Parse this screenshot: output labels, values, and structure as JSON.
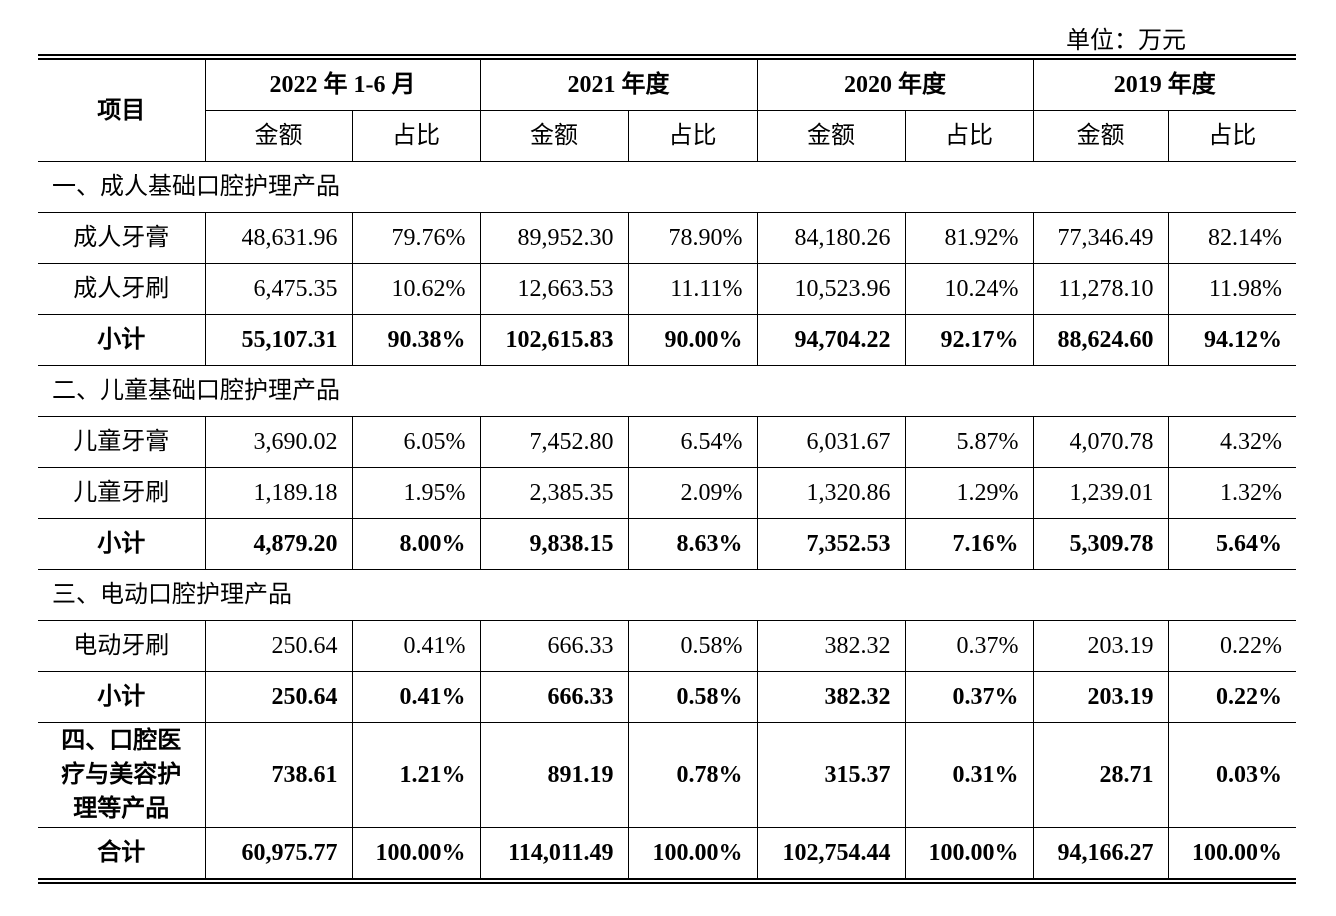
{
  "unit": "单位：万元",
  "header": {
    "item": "项目",
    "periods": [
      "2022 年 1-6 月",
      "2021 年度",
      "2020 年度",
      "2019 年度"
    ],
    "sub": [
      "金额",
      "占比"
    ]
  },
  "rows": [
    {
      "section": "一、成人基础口腔护理产品"
    },
    {
      "label": "成人牙膏",
      "values": [
        "48,631.96",
        "79.76%",
        "89,952.30",
        "78.90%",
        "84,180.26",
        "81.92%",
        "77,346.49",
        "82.14%"
      ]
    },
    {
      "label": "成人牙刷",
      "values": [
        "6,475.35",
        "10.62%",
        "12,663.53",
        "11.11%",
        "10,523.96",
        "10.24%",
        "11,278.10",
        "11.98%"
      ]
    },
    {
      "label": "小计",
      "bold": true,
      "values": [
        "55,107.31",
        "90.38%",
        "102,615.83",
        "90.00%",
        "94,704.22",
        "92.17%",
        "88,624.60",
        "94.12%"
      ]
    },
    {
      "section": "二、儿童基础口腔护理产品"
    },
    {
      "label": "儿童牙膏",
      "values": [
        "3,690.02",
        "6.05%",
        "7,452.80",
        "6.54%",
        "6,031.67",
        "5.87%",
        "4,070.78",
        "4.32%"
      ]
    },
    {
      "label": "儿童牙刷",
      "values": [
        "1,189.18",
        "1.95%",
        "2,385.35",
        "2.09%",
        "1,320.86",
        "1.29%",
        "1,239.01",
        "1.32%"
      ]
    },
    {
      "label": "小计",
      "bold": true,
      "values": [
        "4,879.20",
        "8.00%",
        "9,838.15",
        "8.63%",
        "7,352.53",
        "7.16%",
        "5,309.78",
        "5.64%"
      ]
    },
    {
      "section": "三、电动口腔护理产品"
    },
    {
      "label": "电动牙刷",
      "values": [
        "250.64",
        "0.41%",
        "666.33",
        "0.58%",
        "382.32",
        "0.37%",
        "203.19",
        "0.22%"
      ]
    },
    {
      "label": "小计",
      "bold": true,
      "values": [
        "250.64",
        "0.41%",
        "666.33",
        "0.58%",
        "382.32",
        "0.37%",
        "203.19",
        "0.22%"
      ]
    },
    {
      "label": "四、口腔医疗与美容护理等产品",
      "bold": true,
      "tall": true,
      "values": [
        "738.61",
        "1.21%",
        "891.19",
        "0.78%",
        "315.37",
        "0.31%",
        "28.71",
        "0.03%"
      ]
    },
    {
      "label": "合计",
      "bold": true,
      "values": [
        "60,975.77",
        "100.00%",
        "114,011.49",
        "100.00%",
        "102,754.44",
        "100.00%",
        "94,166.27",
        "100.00%"
      ]
    }
  ]
}
